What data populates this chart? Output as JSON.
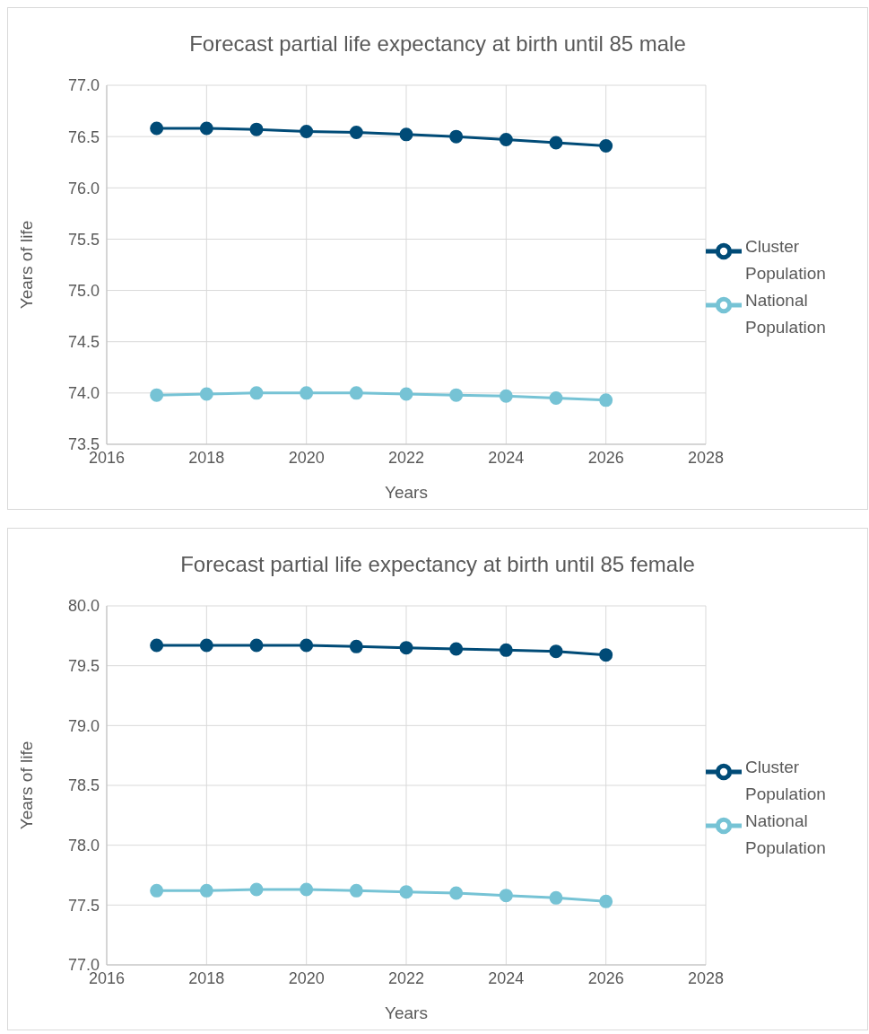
{
  "chart_data": [
    {
      "type": "line",
      "title": "Forecast partial life expectancy at birth until 85 male",
      "xlabel": "Years",
      "ylabel": "Years of life",
      "x": [
        2017,
        2018,
        2019,
        2020,
        2021,
        2022,
        2023,
        2024,
        2025,
        2026
      ],
      "xlim": [
        2016,
        2028
      ],
      "xticks": [
        2016,
        2018,
        2020,
        2022,
        2024,
        2026,
        2028
      ],
      "ylim": [
        73.5,
        77.0
      ],
      "yticks": [
        {
          "value": 73.5,
          "label": "73.5"
        },
        {
          "value": 74,
          "label": "74.0"
        },
        {
          "value": 74.5,
          "label": "74.5"
        },
        {
          "value": 75,
          "label": "75.0"
        },
        {
          "value": 75.5,
          "label": "75.5"
        },
        {
          "value": 76,
          "label": "76.0"
        },
        {
          "value": 76.5,
          "label": "76.5"
        },
        {
          "value": 77,
          "label": "77.0"
        }
      ],
      "grid": true,
      "legend": "right",
      "marker": "circle",
      "series": [
        {
          "name": "Cluster Population",
          "color": "#004b77",
          "values": [
            76.58,
            76.58,
            76.57,
            76.55,
            76.54,
            76.52,
            76.5,
            76.47,
            76.44,
            76.41
          ]
        },
        {
          "name": "National Population",
          "color": "#76c3d5",
          "values": [
            73.98,
            73.99,
            74.0,
            74.0,
            74.0,
            73.99,
            73.98,
            73.97,
            73.95,
            73.93
          ]
        }
      ]
    },
    {
      "type": "line",
      "title": "Forecast partial life expectancy at birth until 85 female",
      "xlabel": "Years",
      "ylabel": "Years of life",
      "x": [
        2017,
        2018,
        2019,
        2020,
        2021,
        2022,
        2023,
        2024,
        2025,
        2026
      ],
      "xlim": [
        2016,
        2028
      ],
      "xticks": [
        2016,
        2018,
        2020,
        2022,
        2024,
        2026,
        2028
      ],
      "ylim": [
        77.0,
        80.0
      ],
      "yticks": [
        {
          "value": 77,
          "label": "77.0"
        },
        {
          "value": 77.5,
          "label": "77.5"
        },
        {
          "value": 78,
          "label": "78.0"
        },
        {
          "value": 78.5,
          "label": "78.5"
        },
        {
          "value": 79,
          "label": "79.0"
        },
        {
          "value": 79.5,
          "label": "79.5"
        },
        {
          "value": 80,
          "label": "80.0"
        }
      ],
      "grid": true,
      "legend": "right",
      "marker": "circle",
      "series": [
        {
          "name": "Cluster Population",
          "color": "#004b77",
          "values": [
            79.67,
            79.67,
            79.67,
            79.67,
            79.66,
            79.65,
            79.64,
            79.63,
            79.62,
            79.59
          ]
        },
        {
          "name": "National Population",
          "color": "#76c3d5",
          "values": [
            77.62,
            77.62,
            77.63,
            77.63,
            77.62,
            77.61,
            77.6,
            77.58,
            77.56,
            77.53
          ]
        }
      ]
    }
  ]
}
